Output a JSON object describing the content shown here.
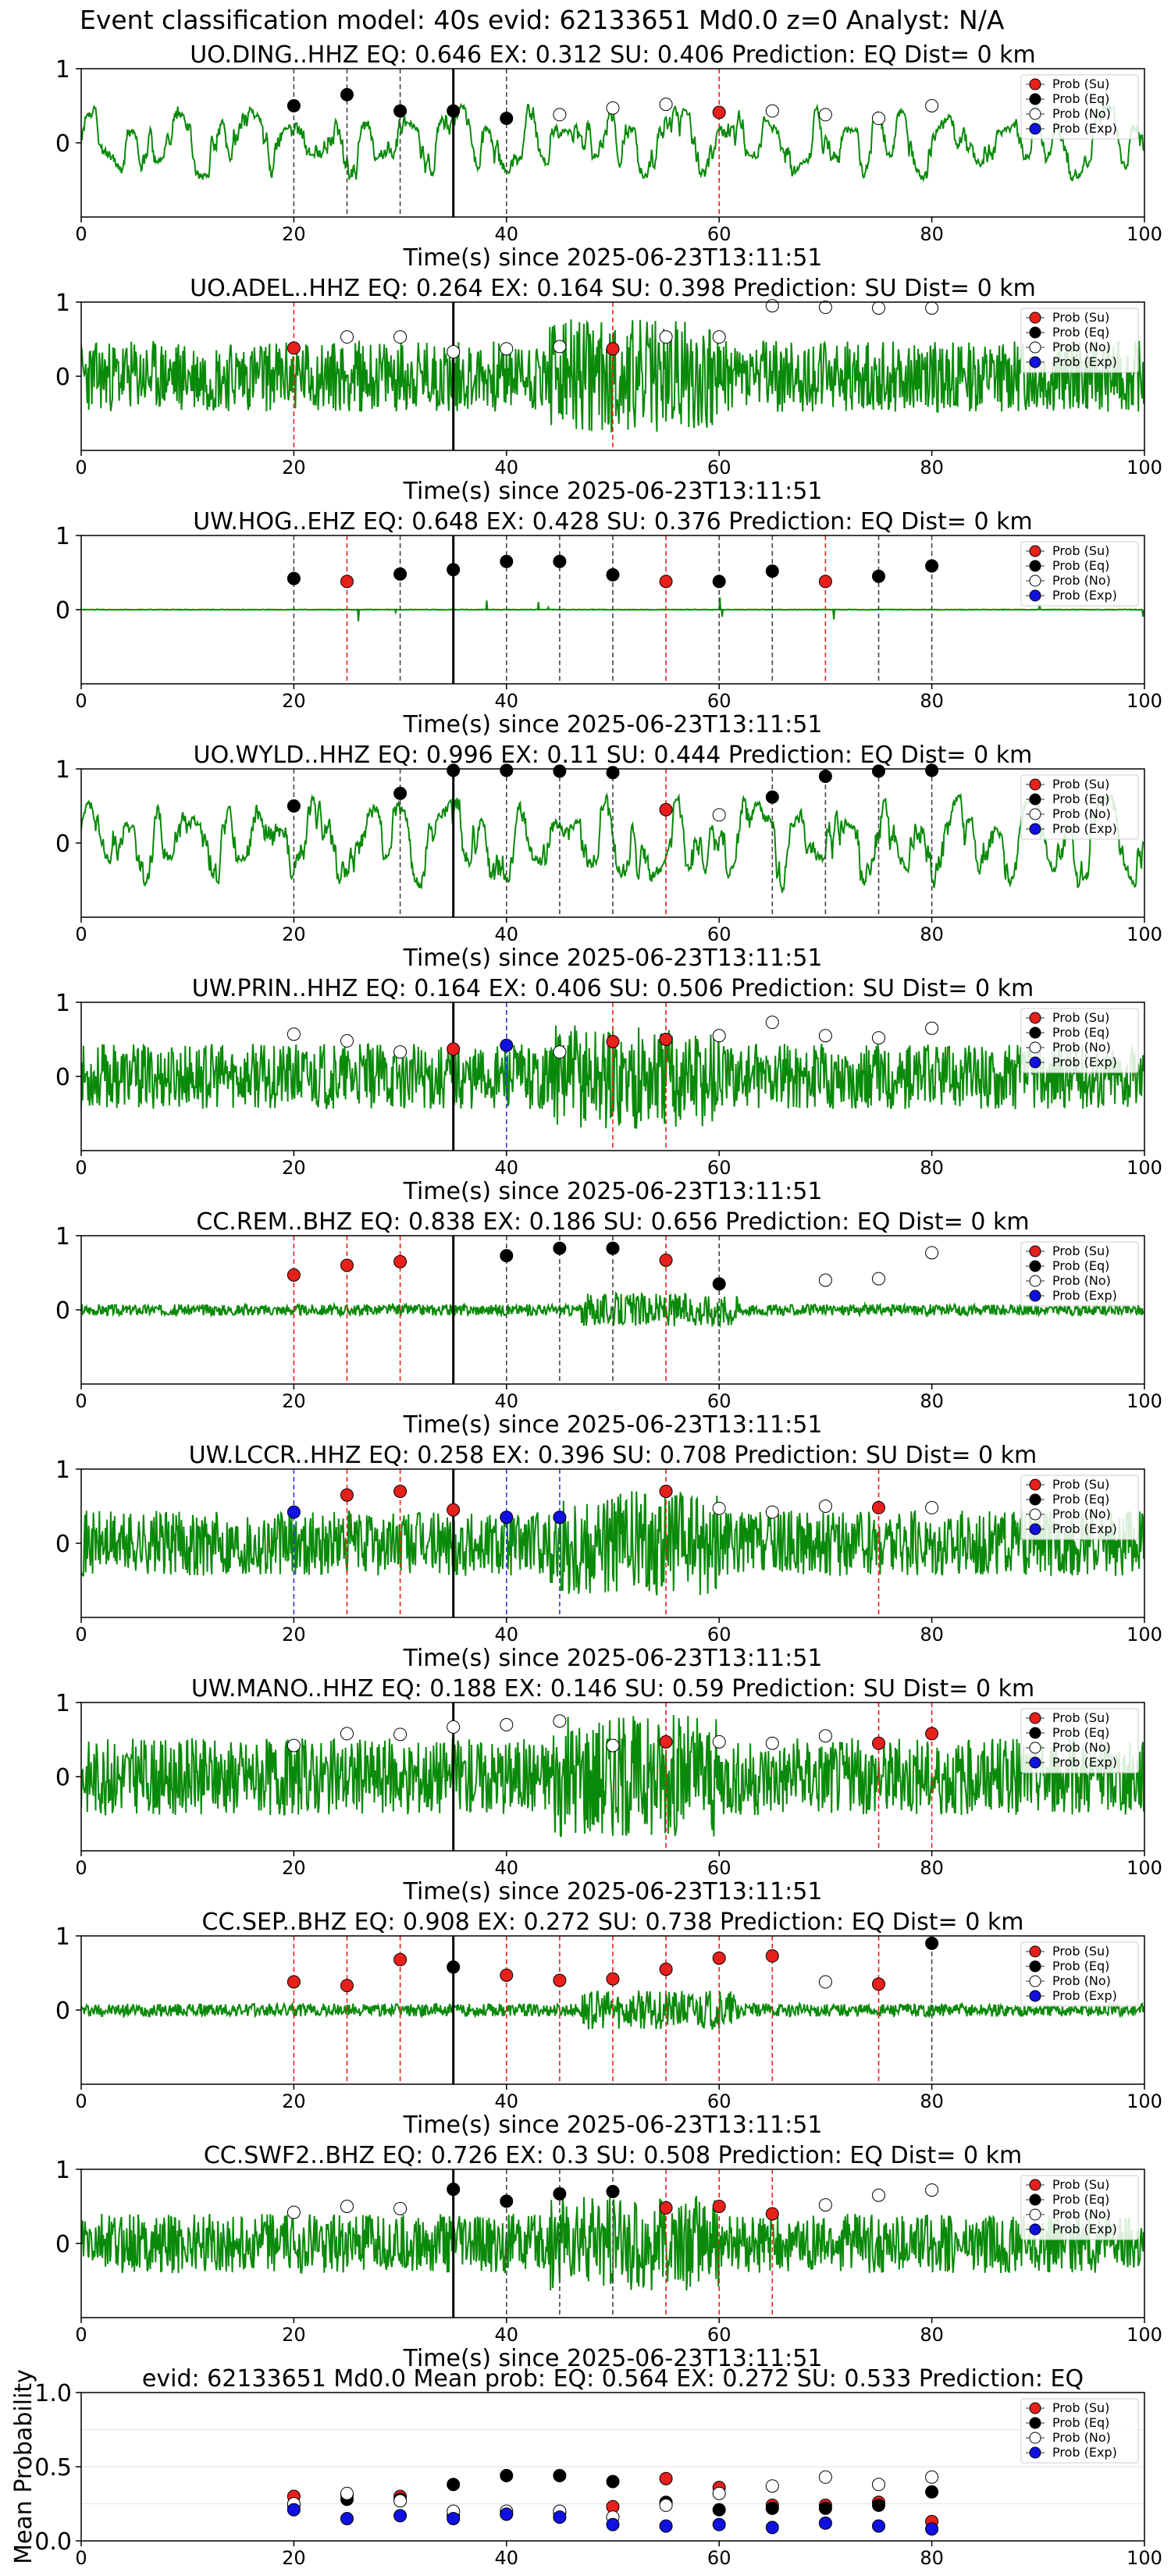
{
  "figure": {
    "suptitle": "Event classification model: 40s evid: 62133651 Md0.0 z=0 Analyst: N/A",
    "xlabel": "Time(s) since 2025-06-23T13:11:51",
    "legend": [
      "Prob (Su)",
      "Prob (Eq)",
      "Prob (No)",
      "Prob (Exp)"
    ],
    "colors": {
      "su": "#e8201c",
      "eq": "#000000",
      "no": "#ffffff",
      "exp": "#1010e0",
      "trace": "#0a8a0a",
      "su_line": "#e8201c",
      "eq_line": "#444444",
      "exp_line": "#3333dd"
    }
  },
  "chart_data": [
    {
      "type": "line",
      "title": "UO.DING..HHZ   EQ: 0.646  EX: 0.312  SU: 0.406   Prediction: EQ    Dist= 0 km",
      "xlim": [
        0,
        100
      ],
      "xticks": [
        0,
        20,
        40,
        60,
        80,
        100
      ],
      "yticks": [
        0,
        1
      ],
      "trace": {
        "seed": 11,
        "style": "smooth",
        "amp": 0.55
      },
      "pick_time": 35,
      "points": [
        {
          "x": 20,
          "c": "eq",
          "y": 0.5
        },
        {
          "x": 25,
          "c": "eq",
          "y": 0.65
        },
        {
          "x": 30,
          "c": "eq",
          "y": 0.43
        },
        {
          "x": 35,
          "c": "eq",
          "y": 0.43
        },
        {
          "x": 40,
          "c": "eq",
          "y": 0.33
        },
        {
          "x": 45,
          "c": "no",
          "y": 0.38
        },
        {
          "x": 50,
          "c": "no",
          "y": 0.47
        },
        {
          "x": 55,
          "c": "no",
          "y": 0.52
        },
        {
          "x": 60,
          "c": "su",
          "y": 0.41
        },
        {
          "x": 65,
          "c": "no",
          "y": 0.43
        },
        {
          "x": 70,
          "c": "no",
          "y": 0.38
        },
        {
          "x": 75,
          "c": "no",
          "y": 0.33
        },
        {
          "x": 80,
          "c": "no",
          "y": 0.5
        }
      ]
    },
    {
      "type": "line",
      "title": "UO.ADEL..HHZ   EQ: 0.264  EX: 0.164  SU: 0.398   Prediction: SU    Dist= 0 km",
      "xlim": [
        0,
        100
      ],
      "xticks": [
        0,
        20,
        40,
        60,
        80,
        100
      ],
      "yticks": [
        0,
        1
      ],
      "trace": {
        "seed": 23,
        "style": "noisy",
        "amp": 0.6
      },
      "pick_time": 35,
      "points": [
        {
          "x": 20,
          "c": "su",
          "y": 0.38
        },
        {
          "x": 25,
          "c": "no",
          "y": 0.53
        },
        {
          "x": 30,
          "c": "no",
          "y": 0.53
        },
        {
          "x": 35,
          "c": "no",
          "y": 0.33
        },
        {
          "x": 40,
          "c": "no",
          "y": 0.37
        },
        {
          "x": 45,
          "c": "no",
          "y": 0.4
        },
        {
          "x": 50,
          "c": "su",
          "y": 0.37
        },
        {
          "x": 55,
          "c": "no",
          "y": 0.53
        },
        {
          "x": 60,
          "c": "no",
          "y": 0.53
        },
        {
          "x": 65,
          "c": "no",
          "y": 0.95
        },
        {
          "x": 70,
          "c": "no",
          "y": 0.93
        },
        {
          "x": 75,
          "c": "no",
          "y": 0.92
        },
        {
          "x": 80,
          "c": "no",
          "y": 0.92
        }
      ]
    },
    {
      "type": "line",
      "title": "UW.HOG..EHZ   EQ: 0.648  EX: 0.428  SU: 0.376   Prediction: EQ    Dist= 0 km",
      "xlim": [
        0,
        100
      ],
      "xticks": [
        0,
        20,
        40,
        60,
        80,
        100
      ],
      "yticks": [
        0,
        1
      ],
      "trace": {
        "seed": 37,
        "style": "spiky",
        "amp": 0.2
      },
      "pick_time": 35,
      "points": [
        {
          "x": 20,
          "c": "eq",
          "y": 0.42
        },
        {
          "x": 25,
          "c": "su",
          "y": 0.38
        },
        {
          "x": 30,
          "c": "eq",
          "y": 0.48
        },
        {
          "x": 35,
          "c": "eq",
          "y": 0.54
        },
        {
          "x": 40,
          "c": "eq",
          "y": 0.65
        },
        {
          "x": 45,
          "c": "eq",
          "y": 0.65
        },
        {
          "x": 50,
          "c": "eq",
          "y": 0.47
        },
        {
          "x": 55,
          "c": "su",
          "y": 0.38
        },
        {
          "x": 60,
          "c": "eq",
          "y": 0.38
        },
        {
          "x": 65,
          "c": "eq",
          "y": 0.52
        },
        {
          "x": 70,
          "c": "su",
          "y": 0.38
        },
        {
          "x": 75,
          "c": "eq",
          "y": 0.45
        },
        {
          "x": 80,
          "c": "eq",
          "y": 0.59
        }
      ]
    },
    {
      "type": "line",
      "title": "UO.WYLD..HHZ   EQ: 0.996  EX: 0.11  SU: 0.444   Prediction: EQ    Dist= 0 km",
      "xlim": [
        0,
        100
      ],
      "xticks": [
        0,
        20,
        40,
        60,
        80,
        100
      ],
      "yticks": [
        0,
        1
      ],
      "trace": {
        "seed": 41,
        "style": "smooth",
        "amp": 0.7
      },
      "pick_time": 35,
      "points": [
        {
          "x": 20,
          "c": "eq",
          "y": 0.5
        },
        {
          "x": 30,
          "c": "eq",
          "y": 0.67
        },
        {
          "x": 35,
          "c": "eq",
          "y": 0.98
        },
        {
          "x": 40,
          "c": "eq",
          "y": 0.98
        },
        {
          "x": 45,
          "c": "eq",
          "y": 0.97
        },
        {
          "x": 50,
          "c": "eq",
          "y": 0.95
        },
        {
          "x": 55,
          "c": "su",
          "y": 0.45
        },
        {
          "x": 60,
          "c": "no",
          "y": 0.38
        },
        {
          "x": 65,
          "c": "eq",
          "y": 0.62
        },
        {
          "x": 70,
          "c": "eq",
          "y": 0.9
        },
        {
          "x": 75,
          "c": "eq",
          "y": 0.97
        },
        {
          "x": 80,
          "c": "eq",
          "y": 0.98
        }
      ]
    },
    {
      "type": "line",
      "title": "UW.PRIN..HHZ   EQ: 0.164  EX: 0.406  SU: 0.506   Prediction: SU    Dist= 0 km",
      "xlim": [
        0,
        100
      ],
      "xticks": [
        0,
        20,
        40,
        60,
        80,
        100
      ],
      "yticks": [
        0,
        1
      ],
      "trace": {
        "seed": 53,
        "style": "noisy",
        "amp": 0.55
      },
      "pick_time": 35,
      "points": [
        {
          "x": 20,
          "c": "no",
          "y": 0.57
        },
        {
          "x": 25,
          "c": "no",
          "y": 0.48
        },
        {
          "x": 30,
          "c": "no",
          "y": 0.33
        },
        {
          "x": 35,
          "c": "su",
          "y": 0.37
        },
        {
          "x": 40,
          "c": "exp",
          "y": 0.42
        },
        {
          "x": 45,
          "c": "no",
          "y": 0.33
        },
        {
          "x": 50,
          "c": "su",
          "y": 0.47
        },
        {
          "x": 55,
          "c": "su",
          "y": 0.5
        },
        {
          "x": 60,
          "c": "no",
          "y": 0.55
        },
        {
          "x": 65,
          "c": "no",
          "y": 0.73
        },
        {
          "x": 70,
          "c": "no",
          "y": 0.55
        },
        {
          "x": 75,
          "c": "no",
          "y": 0.52
        },
        {
          "x": 80,
          "c": "no",
          "y": 0.65
        }
      ]
    },
    {
      "type": "line",
      "title": "CC.REM..BHZ   EQ: 0.838  EX: 0.186  SU: 0.656   Prediction: EQ    Dist= 0 km",
      "xlim": [
        0,
        100
      ],
      "xticks": [
        0,
        20,
        40,
        60,
        80,
        100
      ],
      "yticks": [
        0,
        1
      ],
      "trace": {
        "seed": 67,
        "style": "quiet",
        "amp": 0.3
      },
      "pick_time": 35,
      "points": [
        {
          "x": 20,
          "c": "su",
          "y": 0.47
        },
        {
          "x": 25,
          "c": "su",
          "y": 0.6
        },
        {
          "x": 30,
          "c": "su",
          "y": 0.65
        },
        {
          "x": 40,
          "c": "eq",
          "y": 0.73
        },
        {
          "x": 45,
          "c": "eq",
          "y": 0.83
        },
        {
          "x": 50,
          "c": "eq",
          "y": 0.83
        },
        {
          "x": 55,
          "c": "su",
          "y": 0.67
        },
        {
          "x": 60,
          "c": "eq",
          "y": 0.35
        },
        {
          "x": 70,
          "c": "no",
          "y": 0.4
        },
        {
          "x": 75,
          "c": "no",
          "y": 0.42
        },
        {
          "x": 80,
          "c": "no",
          "y": 0.77
        }
      ]
    },
    {
      "type": "line",
      "title": "UW.LCCR..HHZ   EQ: 0.258  EX: 0.396  SU: 0.708   Prediction: SU    Dist= 0 km",
      "xlim": [
        0,
        100
      ],
      "xticks": [
        0,
        20,
        40,
        60,
        80,
        100
      ],
      "yticks": [
        0,
        1
      ],
      "trace": {
        "seed": 71,
        "style": "noisy",
        "amp": 0.55
      },
      "pick_time": 35,
      "points": [
        {
          "x": 20,
          "c": "exp",
          "y": 0.42
        },
        {
          "x": 25,
          "c": "su",
          "y": 0.65
        },
        {
          "x": 30,
          "c": "su",
          "y": 0.7
        },
        {
          "x": 35,
          "c": "su",
          "y": 0.45
        },
        {
          "x": 40,
          "c": "exp",
          "y": 0.35
        },
        {
          "x": 45,
          "c": "exp",
          "y": 0.35
        },
        {
          "x": 55,
          "c": "su",
          "y": 0.7
        },
        {
          "x": 60,
          "c": "no",
          "y": 0.47
        },
        {
          "x": 65,
          "c": "no",
          "y": 0.42
        },
        {
          "x": 70,
          "c": "no",
          "y": 0.5
        },
        {
          "x": 75,
          "c": "su",
          "y": 0.48
        },
        {
          "x": 80,
          "c": "no",
          "y": 0.48
        }
      ]
    },
    {
      "type": "line",
      "title": "UW.MANO..HHZ   EQ: 0.188  EX: 0.146  SU: 0.59   Prediction: SU    Dist= 0 km",
      "xlim": [
        0,
        100
      ],
      "xticks": [
        0,
        20,
        40,
        60,
        80,
        100
      ],
      "yticks": [
        0,
        1
      ],
      "trace": {
        "seed": 83,
        "style": "noisy",
        "amp": 0.65
      },
      "pick_time": 35,
      "points": [
        {
          "x": 20,
          "c": "no",
          "y": 0.42
        },
        {
          "x": 25,
          "c": "no",
          "y": 0.58
        },
        {
          "x": 30,
          "c": "no",
          "y": 0.57
        },
        {
          "x": 35,
          "c": "no",
          "y": 0.67
        },
        {
          "x": 40,
          "c": "no",
          "y": 0.7
        },
        {
          "x": 45,
          "c": "no",
          "y": 0.75
        },
        {
          "x": 50,
          "c": "no",
          "y": 0.42
        },
        {
          "x": 55,
          "c": "su",
          "y": 0.47
        },
        {
          "x": 60,
          "c": "no",
          "y": 0.47
        },
        {
          "x": 65,
          "c": "no",
          "y": 0.45
        },
        {
          "x": 70,
          "c": "no",
          "y": 0.55
        },
        {
          "x": 75,
          "c": "su",
          "y": 0.45
        },
        {
          "x": 80,
          "c": "su",
          "y": 0.58
        }
      ]
    },
    {
      "type": "line",
      "title": "CC.SEP..BHZ   EQ: 0.908  EX: 0.272  SU: 0.738   Prediction: EQ    Dist= 0 km",
      "xlim": [
        0,
        100
      ],
      "xticks": [
        0,
        20,
        40,
        60,
        80,
        100
      ],
      "yticks": [
        0,
        1
      ],
      "trace": {
        "seed": 97,
        "style": "quiet",
        "amp": 0.35
      },
      "pick_time": 35,
      "points": [
        {
          "x": 20,
          "c": "su",
          "y": 0.38
        },
        {
          "x": 25,
          "c": "su",
          "y": 0.33
        },
        {
          "x": 30,
          "c": "su",
          "y": 0.68
        },
        {
          "x": 35,
          "c": "eq",
          "y": 0.58
        },
        {
          "x": 40,
          "c": "su",
          "y": 0.47
        },
        {
          "x": 45,
          "c": "su",
          "y": 0.4
        },
        {
          "x": 50,
          "c": "su",
          "y": 0.42
        },
        {
          "x": 55,
          "c": "su",
          "y": 0.55
        },
        {
          "x": 60,
          "c": "su",
          "y": 0.7
        },
        {
          "x": 65,
          "c": "su",
          "y": 0.73
        },
        {
          "x": 70,
          "c": "no",
          "y": 0.38
        },
        {
          "x": 75,
          "c": "su",
          "y": 0.35
        },
        {
          "x": 80,
          "c": "eq",
          "y": 0.9
        }
      ]
    },
    {
      "type": "line",
      "title": "CC.SWF2..BHZ   EQ: 0.726  EX: 0.3  SU: 0.508   Prediction: EQ    Dist= 0 km",
      "xlim": [
        0,
        100
      ],
      "xticks": [
        0,
        20,
        40,
        60,
        80,
        100
      ],
      "yticks": [
        0,
        1
      ],
      "trace": {
        "seed": 103,
        "style": "noisy",
        "amp": 0.5
      },
      "pick_time": 35,
      "points": [
        {
          "x": 20,
          "c": "no",
          "y": 0.42
        },
        {
          "x": 25,
          "c": "no",
          "y": 0.5
        },
        {
          "x": 30,
          "c": "no",
          "y": 0.47
        },
        {
          "x": 35,
          "c": "eq",
          "y": 0.73
        },
        {
          "x": 40,
          "c": "eq",
          "y": 0.57
        },
        {
          "x": 45,
          "c": "eq",
          "y": 0.67
        },
        {
          "x": 50,
          "c": "eq",
          "y": 0.7
        },
        {
          "x": 55,
          "c": "su",
          "y": 0.48
        },
        {
          "x": 60,
          "c": "su",
          "y": 0.5
        },
        {
          "x": 65,
          "c": "su",
          "y": 0.4
        },
        {
          "x": 70,
          "c": "no",
          "y": 0.52
        },
        {
          "x": 75,
          "c": "no",
          "y": 0.65
        },
        {
          "x": 80,
          "c": "no",
          "y": 0.72
        }
      ]
    },
    {
      "type": "scatter",
      "title": "evid: 62133651  Md0.0   Mean prob:   EQ: 0.564  EX: 0.272  SU: 0.533   Prediction: EQ",
      "ylabel": "Mean Probability",
      "xlim": [
        0,
        100
      ],
      "ylim": [
        0,
        1
      ],
      "xticks": [
        0,
        20,
        40,
        60,
        80,
        100
      ],
      "yticks": [
        "0.0",
        "0.5",
        "1.0"
      ],
      "series": [
        {
          "name": "Prob (Su)",
          "x": [
            20,
            25,
            30,
            35,
            40,
            45,
            50,
            55,
            60,
            65,
            70,
            75,
            80
          ],
          "values": [
            0.3,
            0.31,
            0.3,
            0.17,
            0.18,
            0.19,
            0.23,
            0.42,
            0.36,
            0.24,
            0.24,
            0.26,
            0.13
          ]
        },
        {
          "name": "Prob (Eq)",
          "x": [
            20,
            25,
            30,
            35,
            40,
            45,
            50,
            55,
            60,
            65,
            70,
            75,
            80
          ],
          "values": [
            0.24,
            0.28,
            0.28,
            0.38,
            0.44,
            0.44,
            0.4,
            0.26,
            0.21,
            0.22,
            0.22,
            0.24,
            0.33
          ]
        },
        {
          "name": "Prob (No)",
          "x": [
            20,
            25,
            30,
            35,
            40,
            45,
            50,
            55,
            60,
            65,
            70,
            75,
            80
          ],
          "values": [
            0.25,
            0.32,
            0.27,
            0.2,
            0.2,
            0.2,
            0.16,
            0.24,
            0.32,
            0.37,
            0.43,
            0.38,
            0.43
          ]
        },
        {
          "name": "Prob (Exp)",
          "x": [
            20,
            25,
            30,
            35,
            40,
            45,
            50,
            55,
            60,
            65,
            70,
            75,
            80
          ],
          "values": [
            0.21,
            0.15,
            0.17,
            0.15,
            0.18,
            0.16,
            0.11,
            0.1,
            0.11,
            0.09,
            0.12,
            0.1,
            0.08
          ]
        }
      ]
    }
  ]
}
